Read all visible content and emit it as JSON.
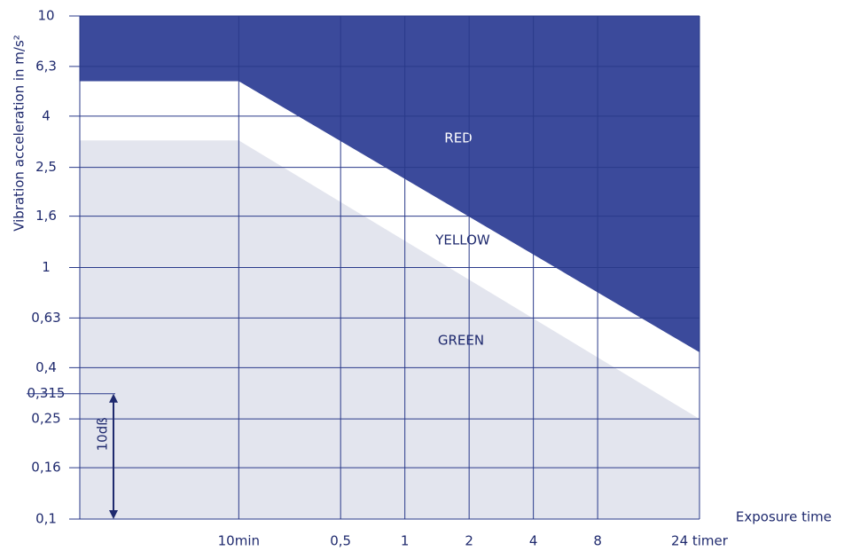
{
  "chart_data": {
    "type": "zones",
    "ylabel": "Vibration acceleration in m/s²",
    "xlabel": "Exposure time",
    "log_x": true,
    "log_y": true,
    "xlim": [
      0.03,
      24
    ],
    "ylim": [
      0.1,
      10
    ],
    "x": [
      0.03,
      0.1667,
      24
    ],
    "series": [
      {
        "name": "RED",
        "color": "#3b4a9b",
        "values": [
          5.5,
          5.5,
          0.46
        ]
      },
      {
        "name": "YELLOW",
        "color": "#ffffff",
        "values": [
          3.2,
          3.2,
          0.25
        ]
      },
      {
        "name": "GREEN",
        "color": "#e3e5ee"
      }
    ],
    "xticks": [
      {
        "value": 0.1667,
        "label": "10min"
      },
      {
        "value": 0.5,
        "label": "0,5"
      },
      1,
      2,
      4,
      8,
      {
        "value": 24,
        "label": "24 timer"
      }
    ],
    "yticks": [
      10,
      {
        "value": 6.3,
        "label": "6,3"
      },
      4,
      {
        "value": 2.5,
        "label": "2,5"
      },
      {
        "value": 1.6,
        "label": "1,6"
      },
      1,
      {
        "value": 0.63,
        "label": "0,63"
      },
      {
        "value": 0.4,
        "label": "0,4"
      },
      {
        "value": 0.315,
        "label": "0,315"
      },
      {
        "value": 0.25,
        "label": "0,25"
      },
      {
        "value": 0.16,
        "label": "0,16"
      },
      {
        "value": 0.1,
        "label": "0,1"
      }
    ],
    "grid": true,
    "annotation": {
      "text": "10dß",
      "span": [
        0.1,
        0.315
      ]
    }
  }
}
